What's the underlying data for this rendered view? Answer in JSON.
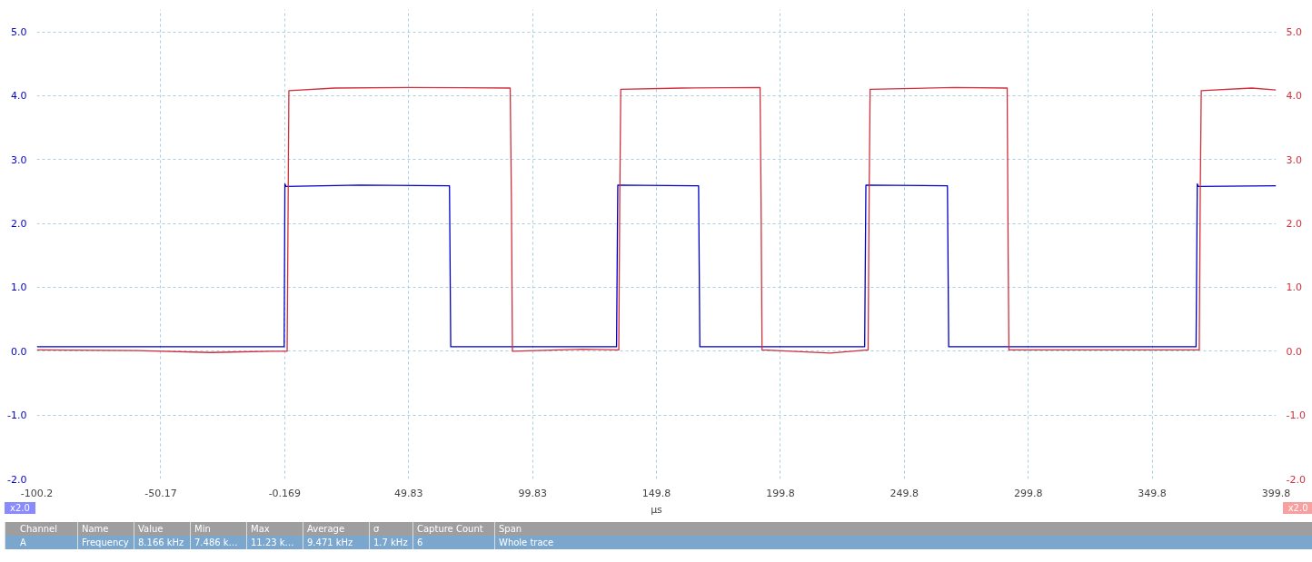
{
  "chart_data": {
    "type": "line",
    "xlabel": "µs",
    "xlim": [
      -100.2,
      399.8
    ],
    "xticks": [
      -100.2,
      -50.17,
      -0.169,
      49.83,
      99.83,
      149.8,
      199.8,
      249.8,
      299.8,
      349.8,
      399.8
    ],
    "ylim": [
      -2.0,
      5.35
    ],
    "yticks": [
      {
        "value": -2,
        "label": "-2.0"
      },
      {
        "value": -1,
        "label": "-1.0"
      },
      {
        "value": 0,
        "label": "0.0"
      },
      {
        "value": 1,
        "label": "1.0"
      },
      {
        "value": 2,
        "label": "2.0"
      },
      {
        "value": 3,
        "label": "3.0"
      },
      {
        "value": 4,
        "label": "4.0"
      },
      {
        "value": 5,
        "label": "5.0"
      }
    ],
    "y2lim": [
      -2.0,
      5.35
    ],
    "y2ticks": [
      {
        "value": -2,
        "label": "-2.0"
      },
      {
        "value": -1,
        "label": "-1.0"
      },
      {
        "value": 0,
        "label": "0.0"
      },
      {
        "value": 1,
        "label": "1.0"
      },
      {
        "value": 2,
        "label": "2.0"
      },
      {
        "value": 3,
        "label": "3.0"
      },
      {
        "value": 4,
        "label": "4.0"
      },
      {
        "value": 5,
        "label": "5.0"
      }
    ],
    "grid": true,
    "line_style": "solid",
    "series": [
      {
        "color": "#0000c8",
        "x": [
          -100.2,
          -30,
          -0.4,
          -0.1,
          0.3,
          30,
          66.3,
          66.8,
          100,
          133.7,
          134.2,
          166.8,
          167.3,
          200,
          233.8,
          234.3,
          267.2,
          267.7,
          300,
          367.5,
          368,
          368.4,
          399.8
        ],
        "values": [
          0.07,
          0.07,
          0.07,
          2.62,
          2.58,
          2.6,
          2.59,
          0.07,
          0.07,
          0.07,
          2.6,
          2.59,
          0.07,
          0.07,
          0.07,
          2.6,
          2.59,
          0.07,
          0.07,
          0.07,
          2.62,
          2.58,
          2.59
        ]
      },
      {
        "color": "#d0303c",
        "axis": "y2",
        "x": [
          -100.2,
          -60,
          -30,
          -5,
          0.8,
          1.2,
          1.5,
          20,
          50,
          90.8,
          91.3,
          91.7,
          120,
          134.6,
          135.0,
          135.4,
          160,
          191.6,
          192,
          192.4,
          220,
          235.2,
          235.6,
          236,
          270,
          291.3,
          291.7,
          292,
          330,
          368.8,
          369.2,
          369.6,
          390,
          399.8
        ],
        "values": [
          0.02,
          0.01,
          -0.02,
          0.0,
          0.0,
          2.3,
          4.08,
          4.12,
          4.13,
          4.12,
          2.3,
          0.0,
          0.03,
          0.02,
          2.4,
          4.1,
          4.12,
          4.13,
          2.4,
          0.02,
          -0.03,
          0.02,
          2.4,
          4.1,
          4.13,
          4.12,
          1.5,
          0.02,
          0.02,
          0.02,
          2.5,
          4.08,
          4.12,
          4.09
        ]
      }
    ],
    "annotations": [
      "x2.0",
      "x2.0",
      "Channel",
      "Name",
      "Value",
      "Min",
      "Max",
      "Average",
      "σ",
      "Capture Count",
      "Span",
      "A",
      "Frequency",
      "8.166 kHz",
      "7.486 k…",
      "11.23 k…",
      "9.471 kHz",
      "1.7 kHz",
      "6",
      "Whole trace"
    ]
  }
}
